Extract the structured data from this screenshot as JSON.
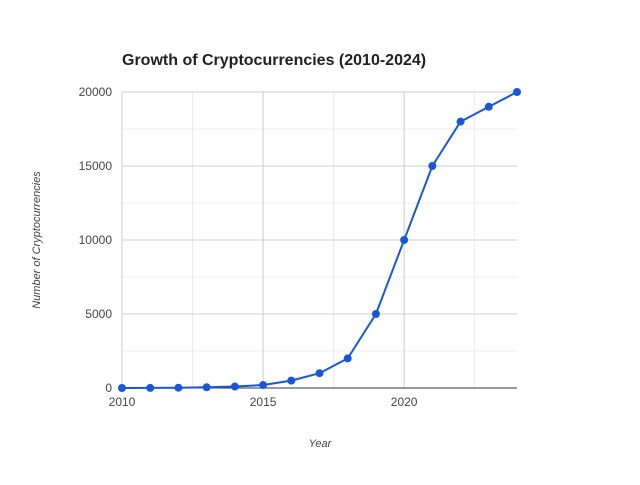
{
  "chart_data": {
    "type": "line",
    "title": "Growth of Cryptocurrencies (2010-2024)",
    "xlabel": "Year",
    "ylabel": "Number of Cryptocurrencies",
    "x": [
      2010,
      2011,
      2012,
      2013,
      2014,
      2015,
      2016,
      2017,
      2018,
      2019,
      2020,
      2021,
      2022,
      2023,
      2024
    ],
    "series": [
      {
        "values": [
          1,
          5,
          20,
          50,
          100,
          200,
          500,
          1000,
          2000,
          5000,
          10000,
          15000,
          18000,
          19000,
          20000
        ]
      }
    ],
    "xlim": [
      2010,
      2024
    ],
    "ylim": [
      0,
      20000
    ],
    "x_ticks": [
      2010,
      2015,
      2020
    ],
    "y_ticks": [
      0,
      5000,
      10000,
      15000,
      20000
    ],
    "grid": true,
    "legend": "none",
    "colors": {
      "line": "#1a57d6",
      "grid_major": "#cccccc",
      "grid_minor": "#ececec",
      "axis": "#333333"
    }
  }
}
